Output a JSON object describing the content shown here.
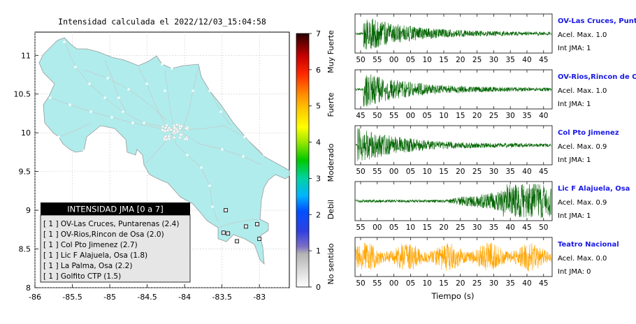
{
  "map": {
    "title": "Intensidad calculada el 2022/12/03_15:04:58",
    "x_ticks": [
      "-86",
      "-85.5",
      "-85",
      "-84.5",
      "-84",
      "-83.5",
      "-83"
    ],
    "y_ticks": [
      "11",
      "10.5",
      "10",
      "9.5",
      "9",
      "8.5",
      "8"
    ],
    "xlim": [
      -86,
      -82.6
    ],
    "ylim": [
      8,
      11.3
    ],
    "land_color": "#b0ecec",
    "legend": {
      "title": "INTENSIDAD JMA [0 a 7]",
      "items": [
        "[ 1 ]  OV-Las Cruces, Puntarenas (2.4)",
        "[ 1 ]  OV-Rios,Rincon de Osa (2.0)",
        "[ 1 ]  Col Pto Jimenez (2.7)",
        "[ 1 ]  Lic F Alajuela, Osa (1.8)",
        "[ 1 ]  La Palma, Osa (2.2)",
        "[ 1 ]  Golfito CTP (1.5)"
      ]
    },
    "stations": [
      {
        "lon": -83.45,
        "lat": 9.0
      },
      {
        "lon": -83.48,
        "lat": 8.71
      },
      {
        "lon": -83.42,
        "lat": 8.7
      },
      {
        "lon": -83.3,
        "lat": 8.6
      },
      {
        "lon": -83.18,
        "lat": 8.79
      },
      {
        "lon": -83.03,
        "lat": 8.82
      },
      {
        "lon": -83.0,
        "lat": 8.63
      }
    ]
  },
  "colorbar": {
    "ticks": [
      "7",
      "6",
      "5",
      "4",
      "3",
      "2",
      "1",
      "0"
    ],
    "labels": [
      "Muy Fuerte",
      "Fuerte",
      "Moderado",
      "Debil",
      "No sentido"
    ]
  },
  "traces": [
    {
      "name": "OV-Las Cruces, Puntar",
      "acel": "Acel. Max. 1.0",
      "int": "Int JMA: 1",
      "ticks": [
        "50",
        "55",
        "00",
        "05",
        "10",
        "15",
        "20",
        "25",
        "30",
        "35",
        "40",
        "45"
      ],
      "color": "#006400",
      "onset": 0.04
    },
    {
      "name": "OV-Rios,Rincon de Osa",
      "acel": "Acel. Max. 1.0",
      "int": "Int JMA: 1",
      "ticks": [
        "45",
        "50",
        "55",
        "00",
        "05",
        "10",
        "15",
        "20",
        "25",
        "30",
        "35",
        "40"
      ],
      "color": "#006400",
      "onset": 0.04
    },
    {
      "name": "Col Pto Jimenez",
      "acel": "Acel. Max. 0.9",
      "int": "Int JMA: 1",
      "ticks": [
        "50",
        "55",
        "00",
        "05",
        "10",
        "15",
        "20",
        "25",
        "30",
        "35",
        "40",
        "45"
      ],
      "color": "#006400",
      "onset": 0.01
    },
    {
      "name": "Lic F Alajuela, Osa",
      "acel": "Acel. Max. 0.9",
      "int": "Int JMA: 1",
      "ticks": [
        "55",
        "00",
        "05",
        "10",
        "15",
        "20",
        "25",
        "30",
        "35",
        "40",
        "45",
        "50"
      ],
      "color": "#006400",
      "onset": 0.75
    },
    {
      "name": "Teatro Nacional",
      "acel": "Acel. Max. 0.0",
      "int": "Int JMA: 0",
      "ticks": [
        "50",
        "55",
        "00",
        "05",
        "10",
        "15",
        "20",
        "25",
        "30",
        "35",
        "40",
        "45"
      ],
      "color": "#ffa500",
      "onset": -1
    }
  ],
  "xlabel": "Tiempo (s)"
}
